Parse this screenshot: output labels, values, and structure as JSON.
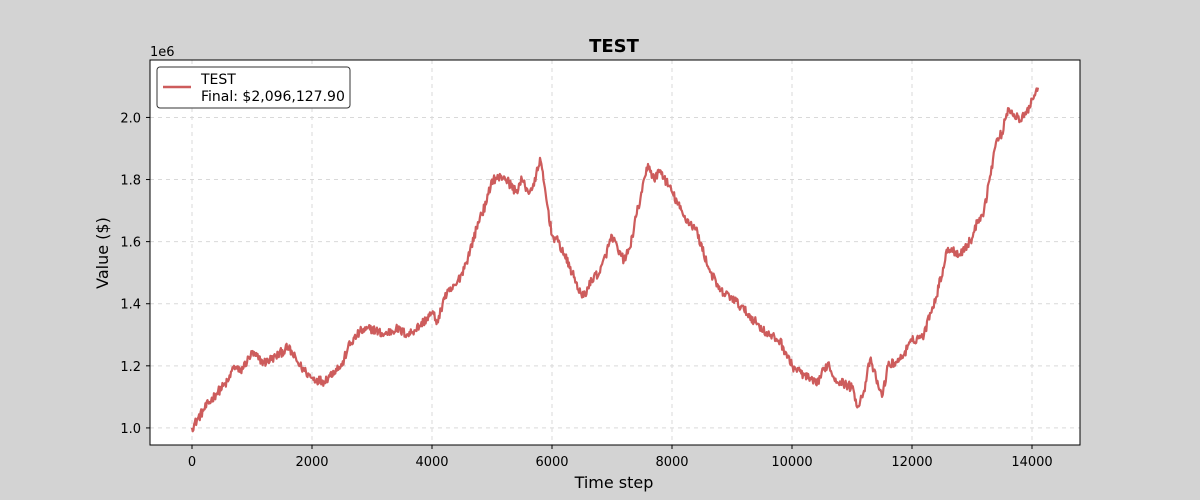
{
  "chart_data": {
    "type": "line",
    "title": "TEST",
    "xlabel": "Time step",
    "ylabel": "Value ($)",
    "y_offset_label": "1e6",
    "xlim": [
      -700,
      14800
    ],
    "ylim": [
      945000,
      2185000
    ],
    "x_ticks": [
      0,
      2000,
      4000,
      6000,
      8000,
      10000,
      12000,
      14000
    ],
    "x_tick_labels": [
      "0",
      "2000",
      "4000",
      "6000",
      "8000",
      "10000",
      "12000",
      "14000"
    ],
    "y_ticks": [
      1000000,
      1200000,
      1400000,
      1600000,
      1800000,
      2000000
    ],
    "y_tick_labels": [
      "1.0",
      "1.2",
      "1.4",
      "1.6",
      "1.8",
      "2.0"
    ],
    "grid": true,
    "legend": {
      "placement": "top-left",
      "line1": "TEST",
      "line2": "Final: $2,096,127.90"
    },
    "color": "#cd5c5c",
    "series": [
      {
        "name": "TEST",
        "x": [
          0,
          200,
          400,
          600,
          700,
          800,
          1000,
          1200,
          1400,
          1600,
          1800,
          1900,
          2000,
          2200,
          2400,
          2500,
          2600,
          2800,
          3000,
          3200,
          3400,
          3600,
          3800,
          4000,
          4100,
          4200,
          4400,
          4500,
          4600,
          4800,
          4900,
          5000,
          5200,
          5400,
          5500,
          5600,
          5700,
          5800,
          6000,
          6100,
          6200,
          6400,
          6500,
          6600,
          6700,
          6800,
          7000,
          7100,
          7200,
          7300,
          7400,
          7500,
          7600,
          7700,
          7800,
          8000,
          8200,
          8400,
          8600,
          8800,
          9000,
          9200,
          9400,
          9600,
          9800,
          10000,
          10200,
          10400,
          10600,
          10700,
          10800,
          11000,
          11100,
          11200,
          11300,
          11400,
          11500,
          11600,
          11800,
          12000,
          12200,
          12300,
          12400,
          12600,
          12800,
          13000,
          13100,
          13200,
          13300,
          13400,
          13500,
          13600,
          13700,
          13800,
          13900,
          14000,
          14100
        ],
        "y": [
          1000000,
          1060000,
          1110000,
          1150000,
          1200000,
          1180000,
          1240000,
          1210000,
          1230000,
          1260000,
          1200000,
          1180000,
          1160000,
          1150000,
          1190000,
          1200000,
          1260000,
          1310000,
          1320000,
          1300000,
          1320000,
          1300000,
          1330000,
          1370000,
          1340000,
          1420000,
          1460000,
          1500000,
          1550000,
          1680000,
          1720000,
          1800000,
          1810000,
          1760000,
          1800000,
          1760000,
          1780000,
          1870000,
          1620000,
          1600000,
          1560000,
          1470000,
          1420000,
          1450000,
          1490000,
          1500000,
          1620000,
          1570000,
          1540000,
          1580000,
          1680000,
          1760000,
          1850000,
          1800000,
          1830000,
          1760000,
          1680000,
          1640000,
          1520000,
          1440000,
          1420000,
          1380000,
          1340000,
          1300000,
          1280000,
          1200000,
          1170000,
          1140000,
          1210000,
          1160000,
          1150000,
          1130000,
          1070000,
          1120000,
          1220000,
          1160000,
          1100000,
          1200000,
          1220000,
          1280000,
          1300000,
          1370000,
          1420000,
          1580000,
          1560000,
          1610000,
          1670000,
          1700000,
          1810000,
          1920000,
          1950000,
          2030000,
          2010000,
          1990000,
          2010000,
          2060000,
          2096128
        ]
      }
    ]
  }
}
